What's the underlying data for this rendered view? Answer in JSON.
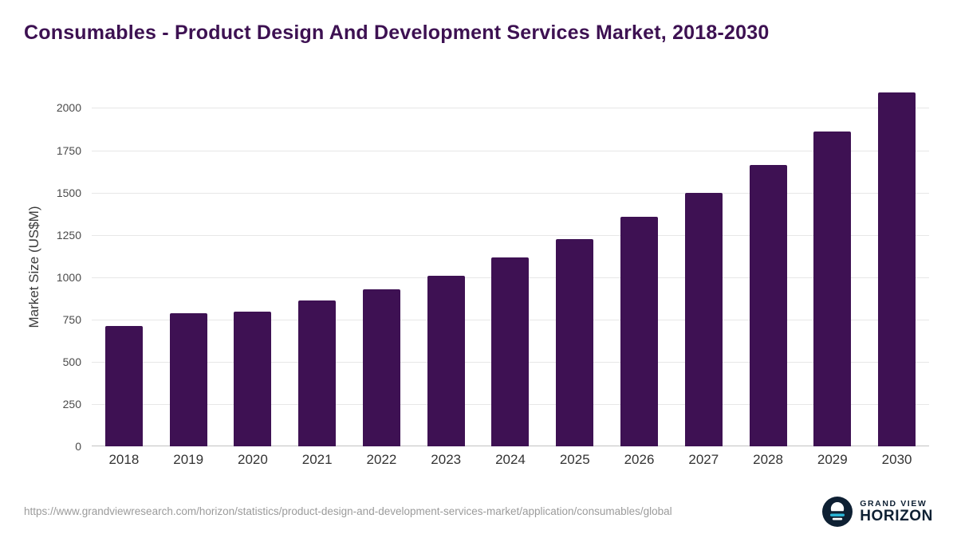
{
  "chart_data": {
    "type": "bar",
    "title": "Consumables - Product Design And Development Services Market, 2018-2030",
    "ylabel": "Market Size (US$M)",
    "xlabel": "",
    "categories": [
      "2018",
      "2019",
      "2020",
      "2021",
      "2022",
      "2023",
      "2024",
      "2025",
      "2026",
      "2027",
      "2028",
      "2029",
      "2030"
    ],
    "values": [
      710,
      785,
      795,
      860,
      930,
      1010,
      1115,
      1225,
      1355,
      1500,
      1665,
      1860,
      2090
    ],
    "yticks": [
      0,
      250,
      500,
      750,
      1000,
      1250,
      1500,
      1750,
      2000
    ],
    "ylim": [
      0,
      2120
    ],
    "grid": "horizontal",
    "legend": "none",
    "bar_color": "#3e1153",
    "title_color": "#3d1152"
  },
  "footer": {
    "source_url": "https://www.grandviewresearch.com/horizon/statistics/product-design-and-development-services-market/application/consumables/global",
    "logo": {
      "line1": "GRAND VIEW",
      "line2": "HORIZON",
      "navy": "#0e2033",
      "cyan": "#2bb7d8"
    }
  }
}
